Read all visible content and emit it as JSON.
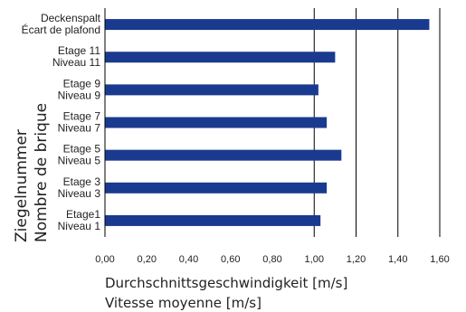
{
  "chart_data": {
    "type": "bar",
    "orientation": "horizontal",
    "categories": [
      [
        "Deckenspalt",
        "Écart de plafond"
      ],
      [
        "Etage 11",
        "Niveau 11"
      ],
      [
        "Etage 9",
        "Niveau 9"
      ],
      [
        "Etage 7",
        "Niveau 7"
      ],
      [
        "Etage 5",
        "Niveau 5"
      ],
      [
        "Etage 3",
        "Niveau 3"
      ],
      [
        "Etage1",
        "Niveau 1"
      ]
    ],
    "values": [
      1.55,
      1.1,
      1.02,
      1.06,
      1.13,
      1.06,
      1.03
    ],
    "xlabel": [
      "Durchschnittsgeschwindigkeit [m/s]",
      "Vitesse moyenne [m/s]"
    ],
    "ylabel": [
      "Ziegelnummer",
      "Nombre de brique"
    ],
    "xlim": [
      0,
      1.6
    ],
    "xticks": [
      "0,00",
      "0,20",
      "0,40",
      "0,60",
      "0,80",
      "1,00",
      "1,20",
      "1,40",
      "1,60"
    ],
    "grid": "vertical lines at 1.00, 1.20, 1.40, 1.60",
    "bar_color": "#1a3a8f"
  }
}
